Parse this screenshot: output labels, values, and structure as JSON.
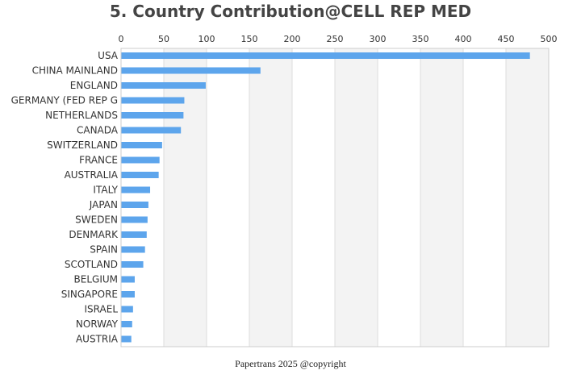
{
  "chart_data": {
    "type": "bar",
    "orientation": "horizontal",
    "title": "5. Country Contribution@CELL REP MED",
    "xlabel": "",
    "ylabel": "",
    "xlim": [
      0,
      500
    ],
    "x_ticks": [
      0,
      50,
      100,
      150,
      200,
      250,
      300,
      350,
      400,
      450,
      500
    ],
    "x_axis_position": "top",
    "grid": true,
    "legend": "none",
    "categories": [
      "USA",
      "CHINA MAINLAND",
      "ENGLAND",
      "GERMANY (FED REP G",
      "NETHERLANDS",
      "CANADA",
      "SWITZERLAND",
      "FRANCE",
      "AUSTRALIA",
      "ITALY",
      "JAPAN",
      "SWEDEN",
      "DENMARK",
      "SPAIN",
      "SCOTLAND",
      "BELGIUM",
      "SINGAPORE",
      "ISRAEL",
      "NORWAY",
      "AUSTRIA"
    ],
    "values": [
      478,
      163,
      99,
      74,
      73,
      70,
      48,
      45,
      44,
      34,
      32,
      31,
      30,
      28,
      26,
      16,
      16,
      14,
      13,
      12
    ],
    "colors": {
      "bar": "#5da5ec",
      "band_alt": "#f3f3f3",
      "grid": "#dddddd"
    }
  },
  "footer": {
    "text": "Papertrans 2025 @copyright"
  }
}
